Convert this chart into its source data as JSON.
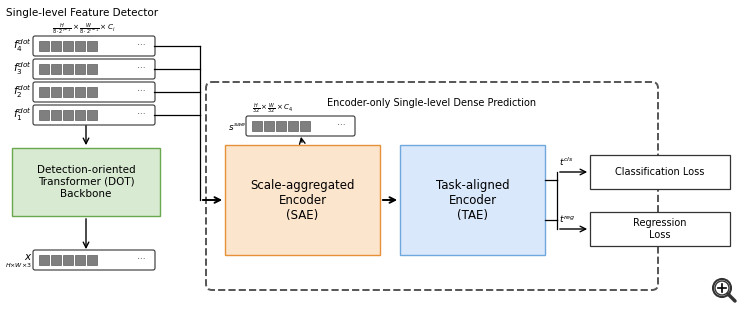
{
  "title": "Single-level Feature Detector",
  "encoder_box_title": "Encoder-only Single-level Dense Prediction",
  "dot_label": "Detection-oriented\nTransformer (DOT)\nBackbone",
  "dot_color": "#d9ead3",
  "dot_edge_color": "#6aa84f",
  "sae_label": "Scale-aggregated\nEncoder\n(SAE)",
  "sae_color": "#fce5cd",
  "sae_edge_color": "#e69138",
  "tae_label": "Task-aligned\nEncoder\n(TAE)",
  "tae_color": "#dae8fc",
  "tae_edge_color": "#6fa8dc",
  "cls_loss_label": "Classification Loss",
  "reg_loss_label": "Regression\nLoss",
  "sq_color": "#7f7f7f",
  "bg_color": "#ffffff"
}
